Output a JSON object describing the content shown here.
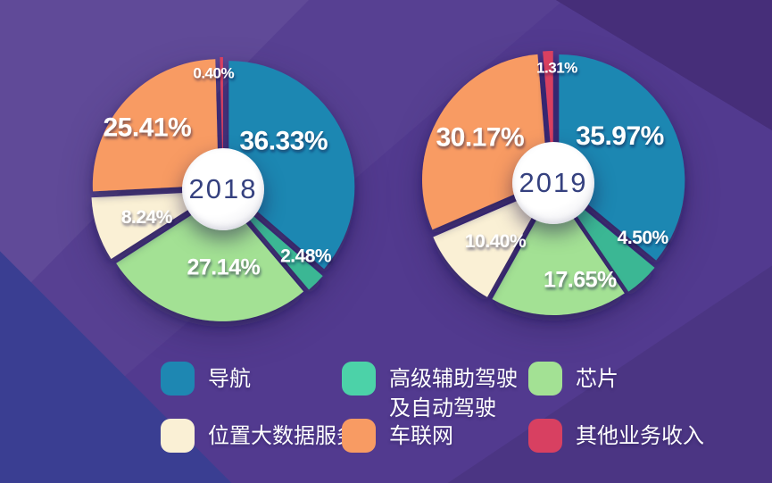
{
  "colors": {
    "background_base": "#523a8f",
    "background_dark_corner": "#462e79",
    "background_blue_corner": "#3a3e92",
    "percent_label_text": "#ffffff",
    "year_text": "#35417f",
    "center_circle": "#ffffff"
  },
  "categories": [
    {
      "key": "navigation",
      "label": "导航",
      "color": "#1e87b2"
    },
    {
      "key": "adas",
      "label": "高级辅助驾驶\n及自动驾驶",
      "color": "#4cd2a8",
      "pie_color": "#3bb794"
    },
    {
      "key": "chip",
      "label": "芯片",
      "color": "#a3e194"
    },
    {
      "key": "location-big-data",
      "label": "位置大数据服务",
      "color": "#faf0d5"
    },
    {
      "key": "telematics",
      "label": "车联网",
      "color": "#f89b63"
    },
    {
      "key": "other-revenue",
      "label": "其他业务收入",
      "color": "#d84061"
    }
  ],
  "chart_data": [
    {
      "type": "pie",
      "title": "2018",
      "labels": [
        "导航",
        "高级辅助驾驶及自动驾驶",
        "芯片",
        "位置大数据服务",
        "车联网",
        "其他业务收入"
      ],
      "values": [
        36.33,
        2.48,
        27.14,
        8.24,
        25.41,
        0.4
      ],
      "display": [
        "36.33%",
        "2.48%",
        "27.14%",
        "8.24%",
        "25.41%",
        "0.40%"
      ],
      "start_angle_deg": 0,
      "direction": "clockwise",
      "label_layout": [
        {
          "r": 0.56,
          "a": 51,
          "fs": 30
        },
        {
          "r": 0.8,
          "a": 129,
          "fs": 21
        },
        {
          "r": 0.58,
          "a": 179,
          "fs": 25
        },
        {
          "r": 0.6,
          "a": 249,
          "fs": 21
        },
        {
          "r": 0.72,
          "a": 308,
          "fs": 30
        },
        {
          "r": 0.87,
          "a": 355,
          "fs": 17
        }
      ]
    },
    {
      "type": "pie",
      "title": "2019",
      "labels": [
        "导航",
        "高级辅助驾驶及自动驾驶",
        "芯片",
        "位置大数据服务",
        "车联网",
        "其他业务收入"
      ],
      "values": [
        35.97,
        4.5,
        17.65,
        10.4,
        30.17,
        1.31
      ],
      "display": [
        "35.97%",
        "4.50%",
        "17.65%",
        "10.40%",
        "30.17%",
        "1.31%"
      ],
      "start_angle_deg": 0,
      "direction": "clockwise",
      "label_layout": [
        {
          "r": 0.59,
          "a": 55,
          "fs": 30
        },
        {
          "r": 0.79,
          "a": 121,
          "fs": 21
        },
        {
          "r": 0.76,
          "a": 164,
          "fs": 25
        },
        {
          "r": 0.61,
          "a": 224,
          "fs": 21
        },
        {
          "r": 0.63,
          "a": 301,
          "fs": 30
        },
        {
          "r": 0.86,
          "a": 2,
          "fs": 17
        }
      ]
    }
  ],
  "legend_grid": {
    "rows": 2,
    "cols": 3,
    "order": [
      "navigation",
      "adas",
      "chip",
      "location-big-data",
      "telematics",
      "other-revenue"
    ]
  }
}
